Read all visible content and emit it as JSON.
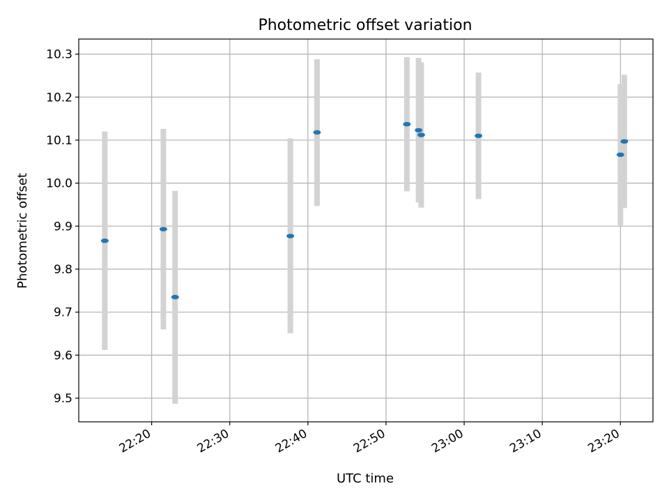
{
  "chart_data": {
    "type": "scatter",
    "title": "Photometric offset variation",
    "xlabel": "UTC time",
    "ylabel": "Photometric offset",
    "xlim": [
      "22:10:40",
      "23:24:10"
    ],
    "ylim": [
      9.445,
      10.335
    ],
    "x_ticks": [
      "22:20",
      "22:30",
      "22:40",
      "22:50",
      "23:00",
      "23:10",
      "23:20"
    ],
    "y_ticks": [
      "9.5",
      "9.6",
      "9.7",
      "9.8",
      "9.9",
      "10.0",
      "10.1",
      "10.2",
      "10.3"
    ],
    "grid": true,
    "errorbar_color": "#d3d3d3",
    "marker_color": "#1f77b4",
    "points": [
      {
        "time": "22:14:00",
        "value": 9.866,
        "low": 9.612,
        "high": 10.12
      },
      {
        "time": "22:21:30",
        "value": 9.893,
        "low": 9.66,
        "high": 10.126
      },
      {
        "time": "22:23:00",
        "value": 9.735,
        "low": 9.487,
        "high": 9.982
      },
      {
        "time": "22:37:45",
        "value": 9.877,
        "low": 9.651,
        "high": 10.104
      },
      {
        "time": "22:41:10",
        "value": 10.118,
        "low": 9.947,
        "high": 10.288
      },
      {
        "time": "22:52:40",
        "value": 10.137,
        "low": 9.981,
        "high": 10.293
      },
      {
        "time": "22:54:10",
        "value": 10.123,
        "low": 9.955,
        "high": 10.291
      },
      {
        "time": "22:54:30",
        "value": 10.112,
        "low": 9.943,
        "high": 10.281
      },
      {
        "time": "23:01:50",
        "value": 10.11,
        "low": 9.963,
        "high": 10.257
      },
      {
        "time": "23:20:00",
        "value": 10.066,
        "low": 9.902,
        "high": 10.23
      },
      {
        "time": "23:20:30",
        "value": 10.097,
        "low": 9.942,
        "high": 10.252
      }
    ]
  }
}
